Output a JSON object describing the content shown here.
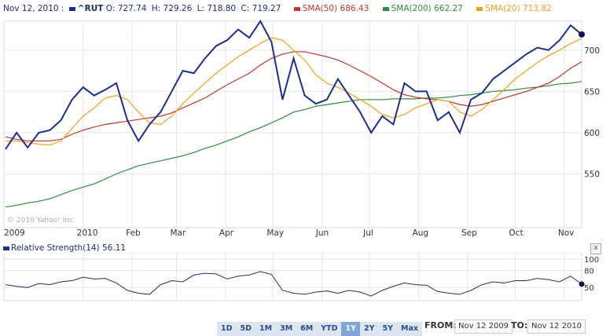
{
  "header": {
    "date": "Nov 12, 2010 :",
    "symbol": "^RUT",
    "open": "O: 727.74",
    "high": "H: 729.26",
    "low": "L: 718.80",
    "close": "C: 719.27",
    "sma50": "SMA(50) 686.43",
    "sma200": "SMA(200) 662.27",
    "sma20": "SMA(20) 713.82"
  },
  "copyright": "© 2010 Yahoo! Inc.",
  "colors": {
    "price": "#1d2f8c",
    "sma50": "#c0392b",
    "sma200": "#2e8b3e",
    "sma20": "#f0a020"
  },
  "rsi": {
    "label": "Relative Strength(14) 56.11",
    "close_label": "x",
    "ticks": [
      "100",
      "80",
      "50"
    ]
  },
  "ranges": [
    "1D",
    "5D",
    "1M",
    "3M",
    "6M",
    "YTD",
    "1Y",
    "2Y",
    "5Y",
    "Max"
  ],
  "selected_range": "1Y",
  "from_label": "FROM:",
  "from_value": "Nov 12 2009",
  "to_label": "TO:",
  "to_value": "Nov 12 2010",
  "chart_data": {
    "type": "line",
    "x_tick_labels": [
      "2009",
      "2010",
      "Feb",
      "Mar",
      "Apr",
      "May",
      "Jun",
      "Jul",
      "Aug",
      "Sep",
      "Oct",
      "Nov"
    ],
    "y_tick_labels": [
      "700",
      "650",
      "600",
      "550"
    ],
    "ylim": [
      485,
      735
    ],
    "dates": [
      "2009-11-13",
      "2009-11-20",
      "2009-11-27",
      "2009-12-04",
      "2009-12-11",
      "2009-12-18",
      "2009-12-25",
      "2010-01-01",
      "2010-01-08",
      "2010-01-15",
      "2010-01-22",
      "2010-01-29",
      "2010-02-05",
      "2010-02-12",
      "2010-02-19",
      "2010-02-26",
      "2010-03-05",
      "2010-03-12",
      "2010-03-19",
      "2010-03-26",
      "2010-04-02",
      "2010-04-09",
      "2010-04-16",
      "2010-04-23",
      "2010-04-30",
      "2010-05-07",
      "2010-05-14",
      "2010-05-21",
      "2010-05-28",
      "2010-06-04",
      "2010-06-11",
      "2010-06-18",
      "2010-06-25",
      "2010-07-02",
      "2010-07-09",
      "2010-07-16",
      "2010-07-23",
      "2010-07-30",
      "2010-08-06",
      "2010-08-13",
      "2010-08-20",
      "2010-08-27",
      "2010-09-03",
      "2010-09-10",
      "2010-09-17",
      "2010-09-24",
      "2010-10-01",
      "2010-10-08",
      "2010-10-15",
      "2010-10-22",
      "2010-10-29",
      "2010-11-05",
      "2010-11-12"
    ],
    "series": [
      {
        "name": "^RUT",
        "key": "price",
        "values": [
          580,
          600,
          582,
          600,
          603,
          615,
          640,
          655,
          645,
          652,
          660,
          615,
          590,
          610,
          625,
          650,
          675,
          672,
          690,
          705,
          712,
          725,
          715,
          735,
          710,
          640,
          690,
          645,
          635,
          640,
          665,
          645,
          625,
          600,
          620,
          610,
          660,
          650,
          650,
          615,
          625,
          600,
          640,
          648,
          665,
          675,
          685,
          695,
          703,
          700,
          712,
          730,
          719
        ]
      },
      {
        "name": "SMA(50)",
        "key": "sma50",
        "values": [
          595,
          592,
          590,
          590,
          590,
          592,
          598,
          603,
          607,
          610,
          612,
          614,
          616,
          618,
          620,
          624,
          630,
          636,
          642,
          650,
          658,
          665,
          672,
          682,
          690,
          695,
          698,
          698,
          695,
          692,
          688,
          682,
          675,
          668,
          660,
          652,
          646,
          643,
          641,
          640,
          638,
          634,
          632,
          634,
          638,
          642,
          646,
          650,
          655,
          660,
          668,
          678,
          686
        ]
      },
      {
        "name": "SMA(200)",
        "key": "sma200",
        "values": [
          510,
          512,
          515,
          517,
          520,
          525,
          530,
          534,
          538,
          544,
          550,
          555,
          560,
          563,
          566,
          569,
          572,
          576,
          581,
          585,
          590,
          595,
          601,
          606,
          612,
          618,
          625,
          628,
          632,
          634,
          636,
          638,
          640,
          640,
          640,
          641,
          641,
          641,
          642,
          642,
          643,
          645,
          646,
          648,
          650,
          651,
          652,
          654,
          655,
          657,
          659,
          660,
          662
        ]
      },
      {
        "name": "SMA(20)",
        "key": "sma20",
        "values": [
          590,
          590,
          588,
          586,
          585,
          590,
          605,
          620,
          630,
          642,
          645,
          640,
          625,
          612,
          610,
          620,
          635,
          648,
          660,
          672,
          682,
          692,
          700,
          708,
          715,
          712,
          700,
          688,
          670,
          660,
          655,
          648,
          640,
          632,
          622,
          618,
          622,
          630,
          635,
          640,
          638,
          625,
          620,
          628,
          640,
          652,
          665,
          675,
          685,
          693,
          700,
          708,
          714
        ]
      }
    ],
    "rsi_values": [
      55,
      52,
      50,
      57,
      55,
      60,
      62,
      68,
      65,
      66,
      58,
      45,
      40,
      38,
      55,
      62,
      60,
      72,
      75,
      74,
      65,
      70,
      72,
      78,
      73,
      45,
      40,
      38,
      42,
      44,
      40,
      45,
      42,
      35,
      45,
      52,
      58,
      55,
      54,
      43,
      40,
      38,
      45,
      55,
      60,
      58,
      62,
      62,
      66,
      64,
      60,
      70,
      56
    ]
  }
}
